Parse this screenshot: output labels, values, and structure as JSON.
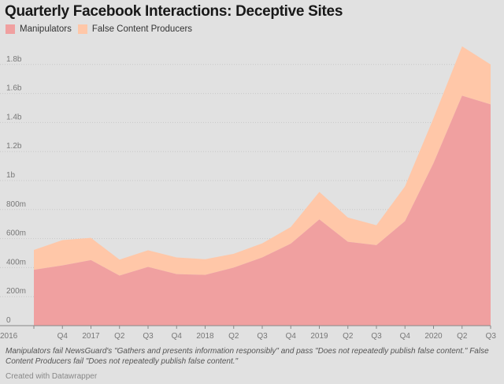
{
  "chart_data": {
    "type": "area",
    "stacked": true,
    "title": "Quarterly Facebook Interactions: Deceptive Sites",
    "x_tick_labels": [
      "2016",
      "Q4",
      "2017",
      "Q2",
      "Q3",
      "Q4",
      "2018",
      "Q2",
      "Q3",
      "Q4",
      "2019",
      "Q2",
      "Q3",
      "Q4",
      "2020",
      "Q2",
      "Q3"
    ],
    "quarters": [
      "2016 Q3",
      "2016 Q4",
      "2017 Q1",
      "2017 Q2",
      "2017 Q3",
      "2017 Q4",
      "2018 Q1",
      "2018 Q2",
      "2018 Q3",
      "2018 Q4",
      "2019 Q1",
      "2019 Q2",
      "2019 Q3",
      "2019 Q4",
      "2020 Q1",
      "2020 Q2",
      "2020 Q3"
    ],
    "y_ticks": [
      {
        "value": 0,
        "label": "0"
      },
      {
        "value": 200000000,
        "label": "200m"
      },
      {
        "value": 400000000,
        "label": "400m"
      },
      {
        "value": 600000000,
        "label": "600m"
      },
      {
        "value": 800000000,
        "label": "800m"
      },
      {
        "value": 1000000000,
        "label": "1b"
      },
      {
        "value": 1200000000,
        "label": "1.2b"
      },
      {
        "value": 1400000000,
        "label": "1.4b"
      },
      {
        "value": 1600000000,
        "label": "1.6b"
      },
      {
        "value": 1800000000,
        "label": "1.8b"
      }
    ],
    "ylim": [
      0,
      2000000000
    ],
    "grid": true,
    "legend_position": "top-left",
    "series": [
      {
        "name": "Manipulators",
        "color": "#f0a0a0",
        "values": [
          385000000,
          415000000,
          452000000,
          345000000,
          405000000,
          355000000,
          350000000,
          400000000,
          470000000,
          565000000,
          732000000,
          578000000,
          555000000,
          720000000,
          1120000000,
          1585000000,
          1525000000
        ]
      },
      {
        "name": "False Content Producers",
        "color": "#ffc7a8",
        "values": [
          137000000,
          175000000,
          153000000,
          110000000,
          115000000,
          115000000,
          108000000,
          95000000,
          97000000,
          115000000,
          190000000,
          167000000,
          137000000,
          240000000,
          310000000,
          340000000,
          275000000
        ]
      }
    ]
  },
  "footnote": "Manipulators fail NewsGuard's \"Gathers and presents information responsibly\" and pass \"Does not repeatedly publish false content.\" False Content Producers fail \"Does not repeatedly publish false content.\"",
  "credit": "Created with Datawrapper"
}
